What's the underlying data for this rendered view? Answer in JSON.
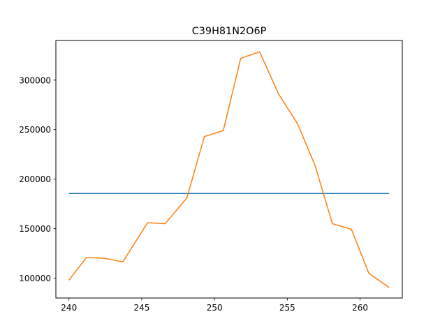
{
  "chart_data": {
    "type": "line",
    "title": "C39H81N2O6P",
    "xlabel": "",
    "ylabel": "",
    "xlim": [
      239.1,
      262.9
    ],
    "ylim": [
      80000,
      340000
    ],
    "grid": false,
    "legend": "none",
    "x_ticks": [
      240,
      245,
      250,
      255,
      260
    ],
    "y_ticks": [
      100000,
      150000,
      200000,
      250000,
      300000
    ],
    "series": [
      {
        "color": "#1f77b4",
        "x": [
          240,
          262
        ],
        "y": [
          185500,
          185500
        ]
      },
      {
        "color": "#ff7f0e",
        "x": [
          240,
          241.2,
          242.5,
          243.7,
          245.4,
          246.6,
          248.1,
          249.3,
          250.6,
          251.8,
          253.1,
          254.4,
          255.7,
          256.9,
          258.1,
          259.4,
          260.6,
          262
        ],
        "y": [
          98000,
          121000,
          120000,
          116500,
          156000,
          155000,
          181000,
          243000,
          249000,
          322000,
          328500,
          286000,
          256000,
          214000,
          155000,
          149500,
          105000,
          90500
        ]
      }
    ]
  }
}
